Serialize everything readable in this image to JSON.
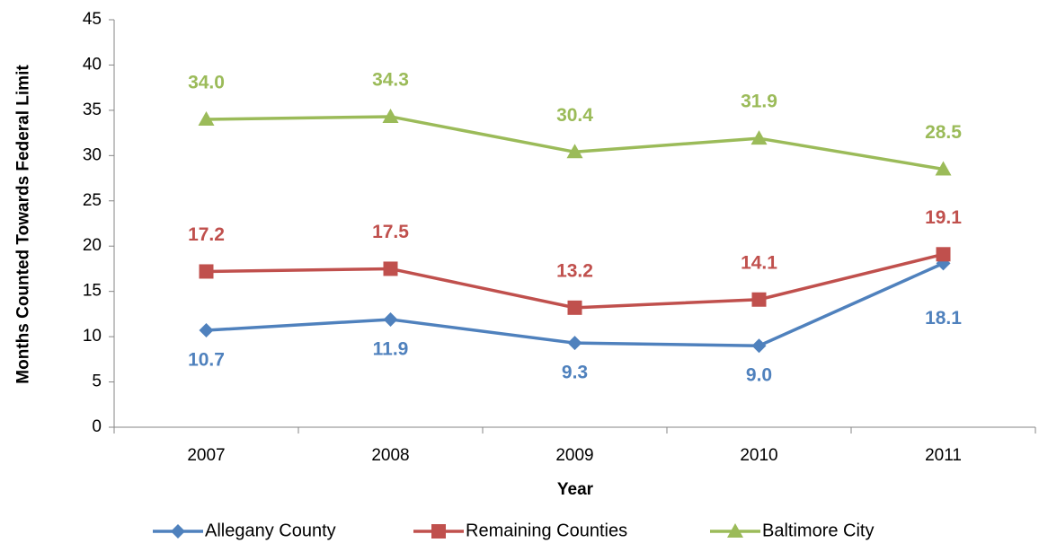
{
  "chart_data": {
    "type": "line",
    "x_label": "Year",
    "y_label": "Months Counted Towards Federal Limit",
    "categories": [
      "2007",
      "2008",
      "2009",
      "2010",
      "2011"
    ],
    "ylim": [
      0,
      45
    ],
    "yticks": [
      0,
      5,
      10,
      15,
      20,
      25,
      30,
      35,
      40,
      45
    ],
    "legend": "bottom",
    "series": [
      {
        "name": "Allegany County",
        "color": "#4f81bd",
        "marker": "diamond",
        "label_position": "below",
        "values": [
          10.7,
          11.9,
          9.3,
          9.0,
          18.1
        ],
        "value_labels": [
          "10.7",
          "11.9",
          "9.3",
          "9.0",
          "18.1"
        ]
      },
      {
        "name": "Remaining Counties",
        "color": "#c0504d",
        "marker": "square",
        "label_position": "above",
        "values": [
          17.2,
          17.5,
          13.2,
          14.1,
          19.1
        ],
        "value_labels": [
          "17.2",
          "17.5",
          "13.2",
          "14.1",
          "19.1"
        ]
      },
      {
        "name": "Baltimore City",
        "color": "#9bbb59",
        "marker": "triangle",
        "label_position": "above",
        "values": [
          34.0,
          34.3,
          30.4,
          31.9,
          28.5
        ],
        "value_labels": [
          "34.0",
          "34.3",
          "30.4",
          "31.9",
          "28.5"
        ]
      }
    ]
  }
}
